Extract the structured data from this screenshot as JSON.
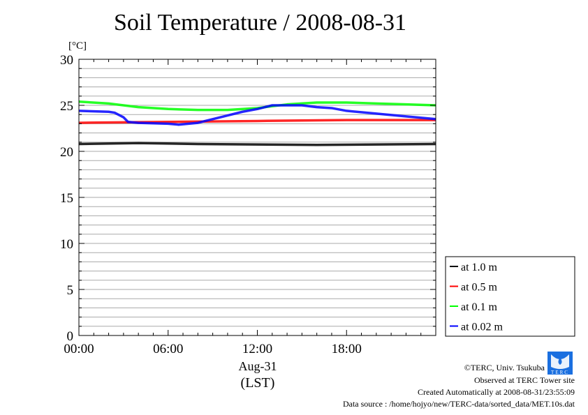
{
  "title": "Soil Temperature / 2008-08-31",
  "chart_data": {
    "type": "line",
    "title": "Soil Temperature / 2008-08-31",
    "ylabel": "[°C]",
    "xlabel": "Aug-31",
    "xlabel2": "(LST)",
    "xlim": [
      0,
      24
    ],
    "ylim": [
      0,
      30
    ],
    "xticks": [
      {
        "v": 0,
        "label": "00:00"
      },
      {
        "v": 6,
        "label": "06:00"
      },
      {
        "v": 12,
        "label": "12:00"
      },
      {
        "v": 18,
        "label": "18:00"
      }
    ],
    "yticks": [
      0,
      5,
      10,
      15,
      20,
      25,
      30
    ],
    "grid": true,
    "legend_position": "bottom-right-outside",
    "series": [
      {
        "name": "at 1.0 m",
        "color": "#000000",
        "points": [
          [
            0,
            20.8
          ],
          [
            4,
            20.9
          ],
          [
            8,
            20.8
          ],
          [
            16,
            20.7
          ],
          [
            24,
            20.8
          ]
        ]
      },
      {
        "name": "at 0.5 m",
        "color": "#ff0000",
        "points": [
          [
            0,
            23.1
          ],
          [
            6,
            23.2
          ],
          [
            12,
            23.3
          ],
          [
            18,
            23.4
          ],
          [
            24,
            23.4
          ]
        ]
      },
      {
        "name": "at 0.1 m",
        "color": "#00ff00",
        "points": [
          [
            0,
            25.4
          ],
          [
            2,
            25.2
          ],
          [
            4,
            24.8
          ],
          [
            6,
            24.6
          ],
          [
            8,
            24.5
          ],
          [
            10,
            24.5
          ],
          [
            12,
            24.7
          ],
          [
            14,
            25.1
          ],
          [
            16,
            25.3
          ],
          [
            18,
            25.3
          ],
          [
            20,
            25.2
          ],
          [
            22,
            25.1
          ],
          [
            24,
            25.0
          ]
        ]
      },
      {
        "name": "at 0.02 m",
        "color": "#0000ff",
        "points": [
          [
            0,
            24.4
          ],
          [
            2,
            24.3
          ],
          [
            2.4,
            24.2
          ],
          [
            3,
            23.7
          ],
          [
            3.3,
            23.2
          ],
          [
            4,
            23.1
          ],
          [
            6,
            23.0
          ],
          [
            6.7,
            22.9
          ],
          [
            8,
            23.1
          ],
          [
            9,
            23.5
          ],
          [
            10,
            23.9
          ],
          [
            11,
            24.3
          ],
          [
            12,
            24.6
          ],
          [
            13,
            25.0
          ],
          [
            14,
            25.0
          ],
          [
            15,
            25.0
          ],
          [
            16,
            24.8
          ],
          [
            17,
            24.7
          ],
          [
            18,
            24.4
          ],
          [
            20,
            24.1
          ],
          [
            22,
            23.8
          ],
          [
            24,
            23.5
          ]
        ]
      }
    ]
  },
  "footer": {
    "copyright": "©TERC, Univ. Tsukuba",
    "site": "Observed at TERC Tower site",
    "created": "Created Automatically at 2008-08-31/23:55:09",
    "source": "Data source : /home/hojyo/new/TERC-data/sorted_data/MET.10s.dat",
    "logo_text": "TERC"
  }
}
